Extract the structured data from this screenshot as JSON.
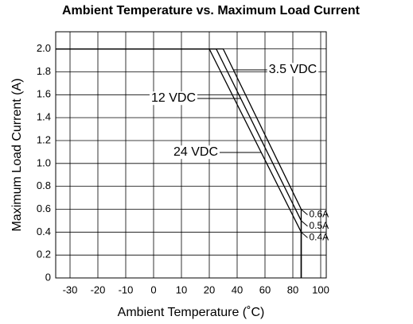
{
  "chart_data": {
    "type": "line",
    "title": "Ambient Temperature vs. Maximum Load Current",
    "x_label": "Ambient Temperature (˚C)",
    "y_label": "Maximum Load Current (A)",
    "series": [
      {
        "name": "3.5 VDC",
        "color": "#000000",
        "x": [
          -35,
          30,
          86,
          86
        ],
        "values": [
          2.0,
          2.0,
          0.6,
          0
        ],
        "value_labels": [
          null,
          null,
          "0.6A",
          null
        ]
      },
      {
        "name": "12 VDC",
        "color": "#000000",
        "x": [
          -35,
          25,
          86,
          86
        ],
        "values": [
          2.0,
          2.0,
          0.5,
          0
        ],
        "value_labels": [
          null,
          null,
          "0.5A",
          null
        ]
      },
      {
        "name": "24 VDC",
        "color": "#000000",
        "x": [
          -35,
          20,
          86,
          86
        ],
        "values": [
          2.0,
          2.0,
          0.4,
          0
        ],
        "value_labels": [
          null,
          null,
          "0.4A",
          null
        ]
      }
    ],
    "xlim": [
      -35,
      102
    ],
    "xticks": [
      -30,
      -20,
      -10,
      0,
      10,
      20,
      40,
      60,
      80,
      100
    ],
    "ylim": [
      0,
      2.15
    ],
    "yticks": [
      0,
      0.2,
      0.4,
      0.6,
      0.8,
      {
        "value": 1.0,
        "label": "1.0"
      },
      1.2,
      1.4,
      1.6,
      1.8,
      {
        "value": 2.0,
        "label": "2.0"
      }
    ],
    "grid": true
  }
}
